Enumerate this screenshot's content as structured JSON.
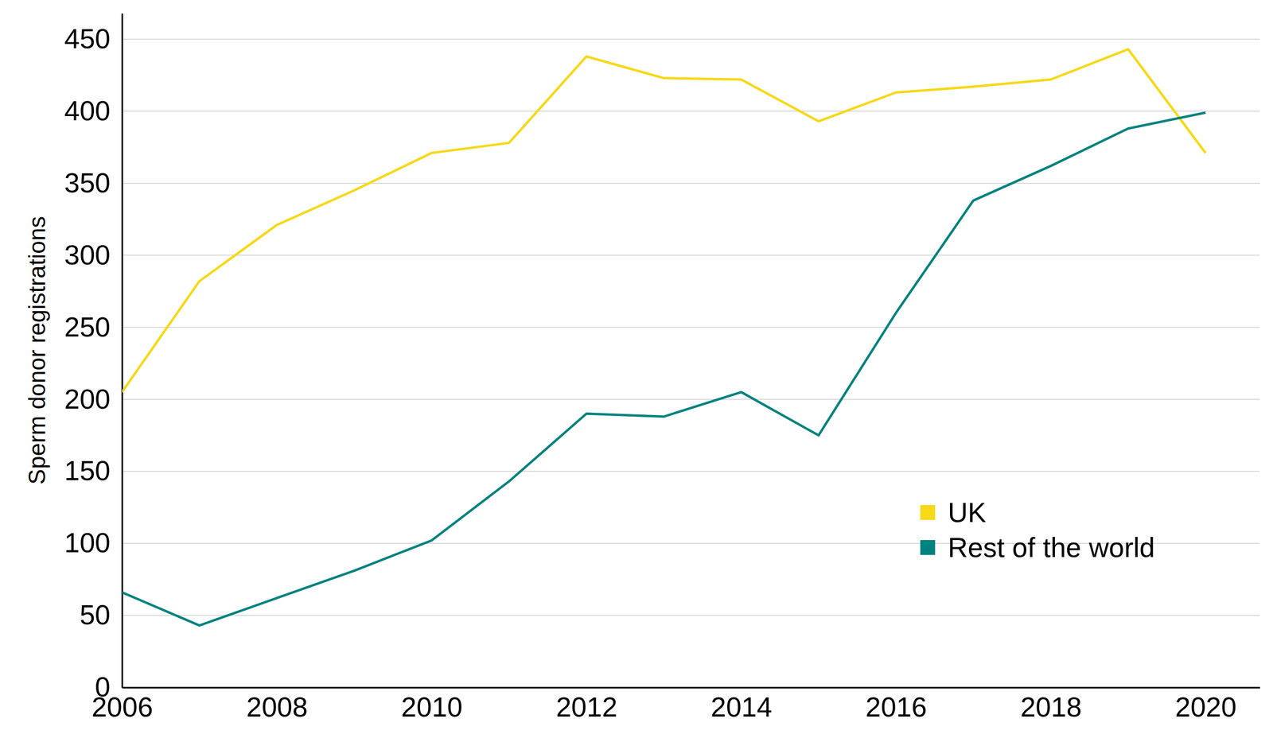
{
  "chart_data": {
    "type": "line",
    "y_label": "Sperm donor registrations",
    "x": [
      2006,
      2007,
      2008,
      2009,
      2010,
      2011,
      2012,
      2013,
      2014,
      2015,
      2016,
      2017,
      2018,
      2019,
      2020
    ],
    "series": [
      {
        "name": "UK",
        "color": "#f7d917",
        "values": [
          205,
          282,
          321,
          345,
          371,
          378,
          438,
          423,
          422,
          393,
          413,
          417,
          422,
          443,
          371
        ]
      },
      {
        "name": "Rest of the world",
        "color": "#00827f",
        "values": [
          66,
          43,
          62,
          81,
          102,
          143,
          190,
          188,
          205,
          175,
          260,
          338,
          362,
          388,
          399
        ]
      }
    ],
    "xlim": [
      2006,
      2020.7
    ],
    "xticks": [
      2006,
      2008,
      2010,
      2012,
      2014,
      2016,
      2018,
      2020
    ],
    "ylim": [
      0,
      468
    ],
    "yticks": [
      0,
      50,
      100,
      150,
      200,
      250,
      300,
      350,
      400,
      450
    ],
    "grid": true,
    "legend": "lower right"
  }
}
